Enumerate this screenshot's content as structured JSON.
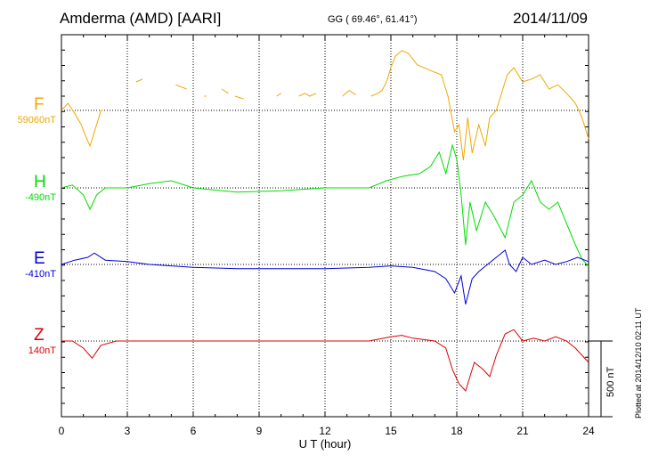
{
  "header": {
    "station": "Amderma (AMD)  [AARI]",
    "coords": "GG ( 69.46°,  61.41°)",
    "date": "2014/11/09"
  },
  "footer": {
    "xlabel": "U T (hour)",
    "plotted": "Plotted at 2014/12/10 02:11  UT",
    "scale_label": "500 nT"
  },
  "chart_data": {
    "type": "line",
    "xlabel": "U T (hour)",
    "xlim": [
      0,
      24
    ],
    "x_ticks": [
      "0",
      "3",
      "6",
      "9",
      "12",
      "15",
      "18",
      "21",
      "24"
    ],
    "scale_bar_nT": 500,
    "series": [
      {
        "name": "F",
        "baseline_label": "59060nT",
        "color": "#f0a800",
        "baseline_level": 1,
        "points": [
          [
            0,
            0
          ],
          [
            0.3,
            5
          ],
          [
            0.6,
            -2
          ],
          [
            0.9,
            -10
          ],
          [
            1.1,
            -18
          ],
          [
            1.3,
            -25
          ],
          [
            1.8,
            0
          ],
          [
            1.9,
            0
          ],
          null,
          [
            3.4,
            20
          ],
          [
            3.7,
            22
          ],
          null,
          [
            5.2,
            18
          ],
          [
            5.7,
            15
          ],
          null,
          [
            6.5,
            10
          ],
          [
            6.6,
            10
          ],
          null,
          [
            7.3,
            15
          ],
          [
            7.6,
            12
          ],
          null,
          [
            7.9,
            10
          ],
          [
            8.3,
            8
          ],
          null,
          [
            9.8,
            10
          ],
          [
            10.0,
            12
          ],
          null,
          [
            10.8,
            10
          ],
          [
            11.1,
            12
          ],
          [
            11.3,
            10
          ],
          [
            11.6,
            12
          ],
          null,
          [
            12.8,
            10
          ],
          [
            13.1,
            14
          ],
          [
            13.4,
            11
          ],
          null,
          [
            14.1,
            10
          ],
          [
            14.4,
            12
          ],
          [
            14.6,
            14
          ],
          [
            14.8,
            20
          ],
          [
            15.0,
            30
          ],
          [
            15.2,
            38
          ],
          [
            15.5,
            42
          ],
          [
            15.8,
            40
          ],
          [
            16.2,
            32
          ],
          [
            16.8,
            28
          ],
          [
            17.3,
            25
          ],
          [
            17.6,
            10
          ],
          [
            17.9,
            -15
          ],
          [
            18.1,
            -10
          ],
          [
            18.3,
            -35
          ],
          [
            18.5,
            -5
          ],
          [
            18.7,
            -30
          ],
          [
            19.0,
            -10
          ],
          [
            19.3,
            -25
          ],
          [
            19.5,
            -5
          ],
          [
            19.8,
            0
          ],
          [
            20.0,
            10
          ],
          [
            20.3,
            25
          ],
          [
            20.6,
            30
          ],
          [
            21.0,
            20
          ],
          [
            21.4,
            22
          ],
          [
            21.8,
            25
          ],
          [
            22.2,
            15
          ],
          [
            22.6,
            18
          ],
          [
            23.0,
            12
          ],
          [
            23.4,
            5
          ],
          [
            23.7,
            -5
          ],
          [
            24,
            -20
          ]
        ]
      },
      {
        "name": "H",
        "baseline_label": "-490nT",
        "color": "#00dd00",
        "baseline_level": 1,
        "points": [
          [
            0,
            0
          ],
          [
            0.5,
            2
          ],
          [
            1.0,
            -5
          ],
          [
            1.3,
            -15
          ],
          [
            1.6,
            -5
          ],
          [
            2.0,
            0
          ],
          [
            3.0,
            0
          ],
          [
            4.0,
            3
          ],
          [
            5.0,
            5
          ],
          [
            6.0,
            0
          ],
          [
            8.0,
            -3
          ],
          [
            10.0,
            -2
          ],
          [
            12.0,
            0
          ],
          [
            14.0,
            0
          ],
          [
            14.8,
            5
          ],
          [
            15.5,
            8
          ],
          [
            16.3,
            10
          ],
          [
            16.8,
            15
          ],
          [
            17.2,
            25
          ],
          [
            17.5,
            10
          ],
          [
            17.8,
            30
          ],
          [
            18.0,
            20
          ],
          [
            18.2,
            -5
          ],
          [
            18.4,
            -40
          ],
          [
            18.6,
            -10
          ],
          [
            18.9,
            -30
          ],
          [
            19.3,
            -10
          ],
          [
            19.7,
            -20
          ],
          [
            20.2,
            -35
          ],
          [
            20.6,
            -10
          ],
          [
            21.0,
            -5
          ],
          [
            21.4,
            5
          ],
          [
            21.8,
            -10
          ],
          [
            22.2,
            -15
          ],
          [
            22.6,
            -10
          ],
          [
            23.0,
            -25
          ],
          [
            23.4,
            -40
          ],
          [
            23.7,
            -50
          ],
          [
            24,
            -55
          ]
        ]
      },
      {
        "name": "E",
        "baseline_label": "-410nT",
        "color": "#0000dd",
        "baseline_level": 1,
        "points": [
          [
            0,
            0
          ],
          [
            0.6,
            3
          ],
          [
            1.2,
            5
          ],
          [
            1.5,
            8
          ],
          [
            2.0,
            3
          ],
          [
            3.0,
            2
          ],
          [
            4.0,
            0
          ],
          [
            6.0,
            -2
          ],
          [
            8.0,
            -3
          ],
          [
            10.0,
            -3
          ],
          [
            12.0,
            -3
          ],
          [
            14.0,
            -2
          ],
          [
            15.0,
            -1
          ],
          [
            16.0,
            -2
          ],
          [
            17.0,
            -5
          ],
          [
            17.5,
            -10
          ],
          [
            17.9,
            -20
          ],
          [
            18.2,
            -8
          ],
          [
            18.4,
            -28
          ],
          [
            18.7,
            -10
          ],
          [
            19.0,
            -5
          ],
          [
            19.4,
            0
          ],
          [
            19.8,
            5
          ],
          [
            20.2,
            10
          ],
          [
            20.4,
            0
          ],
          [
            20.7,
            -5
          ],
          [
            21.0,
            5
          ],
          [
            21.4,
            0
          ],
          [
            22.0,
            3
          ],
          [
            22.5,
            0
          ],
          [
            23.0,
            2
          ],
          [
            23.5,
            5
          ],
          [
            24,
            2
          ]
        ]
      },
      {
        "name": "Z",
        "baseline_label": "140nT",
        "color": "#dd0000",
        "baseline_level": 1,
        "points": [
          [
            0,
            0
          ],
          [
            0.5,
            0
          ],
          [
            1.0,
            -5
          ],
          [
            1.4,
            -12
          ],
          [
            1.8,
            -3
          ],
          [
            2.5,
            0
          ],
          [
            3.0,
            0
          ],
          [
            4.0,
            0
          ],
          [
            6.0,
            0
          ],
          [
            8.0,
            0
          ],
          [
            10.0,
            0
          ],
          [
            12.0,
            0
          ],
          [
            14.0,
            0
          ],
          [
            15.0,
            3
          ],
          [
            15.5,
            4
          ],
          [
            16.0,
            2
          ],
          [
            17.0,
            0
          ],
          [
            17.5,
            -5
          ],
          [
            17.8,
            -20
          ],
          [
            18.1,
            -30
          ],
          [
            18.4,
            -35
          ],
          [
            18.6,
            -25
          ],
          [
            18.8,
            -15
          ],
          [
            19.2,
            -20
          ],
          [
            19.5,
            -25
          ],
          [
            19.8,
            -10
          ],
          [
            20.2,
            5
          ],
          [
            20.6,
            8
          ],
          [
            21.0,
            0
          ],
          [
            21.5,
            2
          ],
          [
            22.0,
            0
          ],
          [
            22.5,
            3
          ],
          [
            23.0,
            0
          ],
          [
            23.4,
            -5
          ],
          [
            23.7,
            -10
          ],
          [
            24,
            -15
          ]
        ]
      }
    ]
  }
}
